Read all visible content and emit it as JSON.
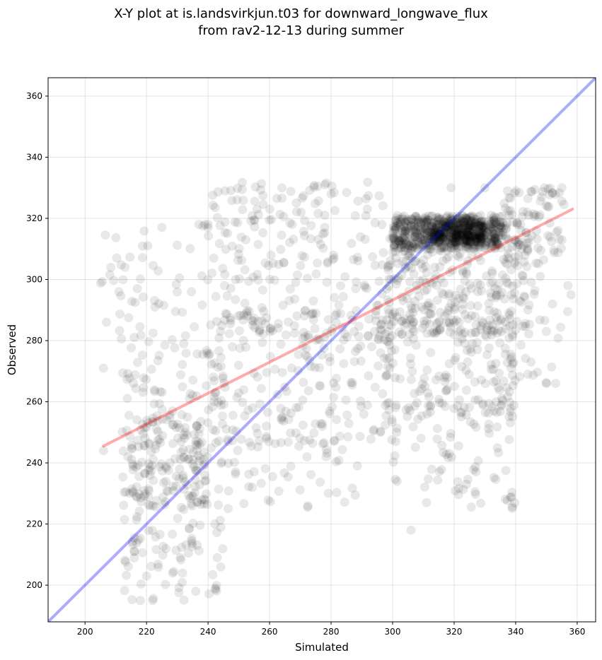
{
  "chart_data": {
    "type": "scatter",
    "title_line1": "X-Y plot at is.landsvirkjun.t03 for downward_longwave_flux",
    "title_line2": "from rav2-12-13 during summer",
    "xlabel": "Simulated",
    "ylabel": "Observed",
    "xlim": [
      188,
      366
    ],
    "ylim": [
      188,
      366
    ],
    "xticks": [
      200,
      220,
      240,
      260,
      280,
      300,
      320,
      340,
      360
    ],
    "yticks": [
      200,
      220,
      240,
      260,
      280,
      300,
      320,
      340,
      360
    ],
    "grid": true,
    "identity_line": {
      "color": "#0000ff",
      "from": [
        188,
        188
      ],
      "to": [
        366,
        366
      ]
    },
    "regression_line": {
      "color": "#ff0000",
      "from": [
        206,
        245.5
      ],
      "to": [
        358.5,
        323
      ]
    },
    "point_color": "#000000",
    "clusters": [
      {
        "x": [
          300,
          336
        ],
        "y": [
          310,
          321
        ],
        "n": 520
      },
      {
        "x": [
          312,
          330
        ],
        "y": [
          312,
          319
        ],
        "n": 220
      },
      {
        "x": [
          298,
          345
        ],
        "y": [
          282,
          318
        ],
        "n": 300
      },
      {
        "x": [
          336,
          356
        ],
        "y": [
          305,
          330
        ],
        "n": 80
      },
      {
        "x": [
          295,
          340
        ],
        "y": [
          255,
          290
        ],
        "n": 180
      },
      {
        "x": [
          300,
          340
        ],
        "y": [
          225,
          260
        ],
        "n": 80
      },
      {
        "x": [
          240,
          300
        ],
        "y": [
          280,
          332
        ],
        "n": 220
      },
      {
        "x": [
          240,
          300
        ],
        "y": [
          245,
          290
        ],
        "n": 200
      },
      {
        "x": [
          212,
          245
        ],
        "y": [
          195,
          280
        ],
        "n": 200
      },
      {
        "x": [
          215,
          240
        ],
        "y": [
          225,
          255
        ],
        "n": 120
      },
      {
        "x": [
          205,
          240
        ],
        "y": [
          280,
          318
        ],
        "n": 50
      },
      {
        "x": [
          245,
          290
        ],
        "y": [
          225,
          250
        ],
        "n": 50
      },
      {
        "x": [
          340,
          358
        ],
        "y": [
          265,
          300
        ],
        "n": 15
      }
    ],
    "points": [
      [
        206,
        271
      ],
      [
        207,
        286
      ],
      [
        206,
        244
      ],
      [
        211,
        296
      ],
      [
        213,
        304
      ],
      [
        225,
        317
      ],
      [
        218,
        195
      ],
      [
        222,
        195
      ],
      [
        236,
        198
      ],
      [
        264,
        330
      ],
      [
        278,
        331
      ],
      [
        280,
        328
      ],
      [
        306,
        218
      ],
      [
        319,
        330
      ],
      [
        330,
        330
      ],
      [
        355,
        330
      ],
      [
        353,
        266
      ],
      [
        350,
        266
      ],
      [
        358,
        295
      ],
      [
        357,
        298
      ],
      [
        344,
        269
      ],
      [
        345,
        273
      ],
      [
        216,
        211
      ],
      [
        220,
        203
      ],
      [
        243,
        209
      ],
      [
        296,
        250
      ],
      [
        311,
        227
      ],
      [
        339,
        282
      ],
      [
        352,
        292
      ],
      [
        237,
        318
      ],
      [
        239,
        318
      ],
      [
        240,
        318
      ],
      [
        240,
        317
      ],
      [
        350,
        283
      ],
      [
        348,
        301
      ],
      [
        324,
        233
      ]
    ]
  }
}
